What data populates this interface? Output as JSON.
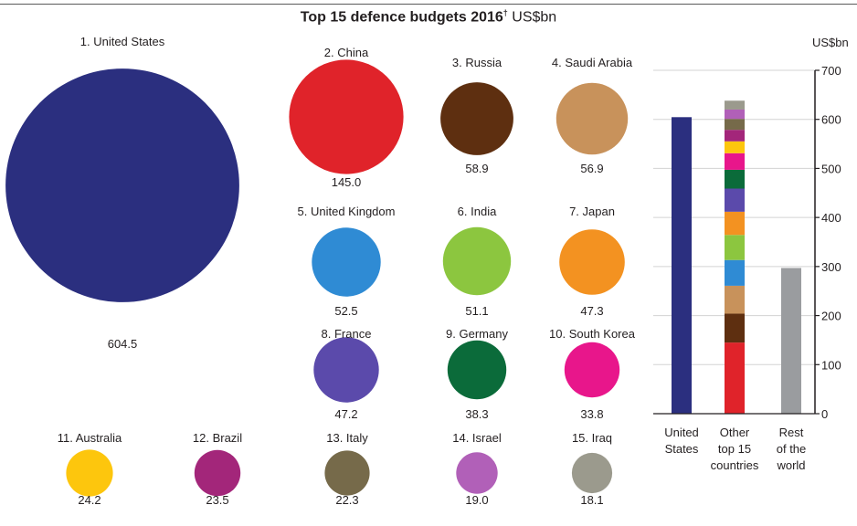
{
  "title": {
    "main": "Top 15 defence budgets 2016",
    "footnote_mark": "†",
    "unit": "US$bn"
  },
  "chart_data": [
    {
      "type": "bubble",
      "countries": [
        {
          "rank": 1,
          "name": "United States",
          "label": "1. United States",
          "value": 604.5,
          "value_label": "604.5",
          "color": "#2b2f7f"
        },
        {
          "rank": 2,
          "name": "China",
          "label": "2. China",
          "value": 145.0,
          "value_label": "145.0",
          "color": "#e0232a"
        },
        {
          "rank": 3,
          "name": "Russia",
          "label": "3. Russia",
          "value": 58.9,
          "value_label": "58.9",
          "color": "#5e2f10"
        },
        {
          "rank": 4,
          "name": "Saudi Arabia",
          "label": "4. Saudi Arabia",
          "value": 56.9,
          "value_label": "56.9",
          "color": "#c8925b"
        },
        {
          "rank": 5,
          "name": "United Kingdom",
          "label": "5. United Kingdom",
          "value": 52.5,
          "value_label": "52.5",
          "color": "#2f8bd4"
        },
        {
          "rank": 6,
          "name": "India",
          "label": "6. India",
          "value": 51.1,
          "value_label": "51.1",
          "color": "#8cc63f"
        },
        {
          "rank": 7,
          "name": "Japan",
          "label": "7. Japan",
          "value": 47.3,
          "value_label": "47.3",
          "color": "#f39221"
        },
        {
          "rank": 8,
          "name": "France",
          "label": "8. France",
          "value": 47.2,
          "value_label": "47.2",
          "color": "#5b4aab"
        },
        {
          "rank": 9,
          "name": "Germany",
          "label": "9. Germany",
          "value": 38.3,
          "value_label": "38.3",
          "color": "#0b6b3a"
        },
        {
          "rank": 10,
          "name": "South Korea",
          "label": "10. South Korea",
          "value": 33.8,
          "value_label": "33.8",
          "color": "#e8168b"
        },
        {
          "rank": 11,
          "name": "Australia",
          "label": "11. Australia",
          "value": 24.2,
          "value_label": "24.2",
          "color": "#fdc60d"
        },
        {
          "rank": 12,
          "name": "Brazil",
          "label": "12. Brazil",
          "value": 23.5,
          "value_label": "23.5",
          "color": "#a3267a"
        },
        {
          "rank": 13,
          "name": "Italy",
          "label": "13. Italy",
          "value": 22.3,
          "value_label": "22.3",
          "color": "#766a4a"
        },
        {
          "rank": 14,
          "name": "Israel",
          "label": "14. Israel",
          "value": 19.0,
          "value_label": "19.0",
          "color": "#b160b8"
        },
        {
          "rank": 15,
          "name": "Iraq",
          "label": "15. Iraq",
          "value": 18.1,
          "value_label": "18.1",
          "color": "#9b9a8d"
        }
      ]
    },
    {
      "type": "bar",
      "ylabel": "US$bn",
      "ylim": [
        0,
        700
      ],
      "yticks": [
        0,
        100,
        200,
        300,
        400,
        500,
        600,
        700
      ],
      "categories": [
        "United States",
        "Other top 15 countries",
        "Rest of the world"
      ],
      "category_labels": [
        [
          "United",
          "States"
        ],
        [
          "Other",
          "top 15",
          "countries"
        ],
        [
          "Rest",
          "of the",
          "world"
        ]
      ],
      "bars": [
        {
          "category": "United States",
          "stacked": false,
          "value": 604.5,
          "color": "#2b2f7f"
        },
        {
          "category": "Other top 15 countries",
          "stacked": true,
          "segments_from_ranks": [
            2,
            3,
            4,
            5,
            6,
            7,
            8,
            9,
            10,
            11,
            12,
            13,
            14,
            15
          ]
        },
        {
          "category": "Rest of the world",
          "stacked": false,
          "value": 297,
          "color": "#9a9c9f"
        }
      ],
      "grid": true
    }
  ]
}
